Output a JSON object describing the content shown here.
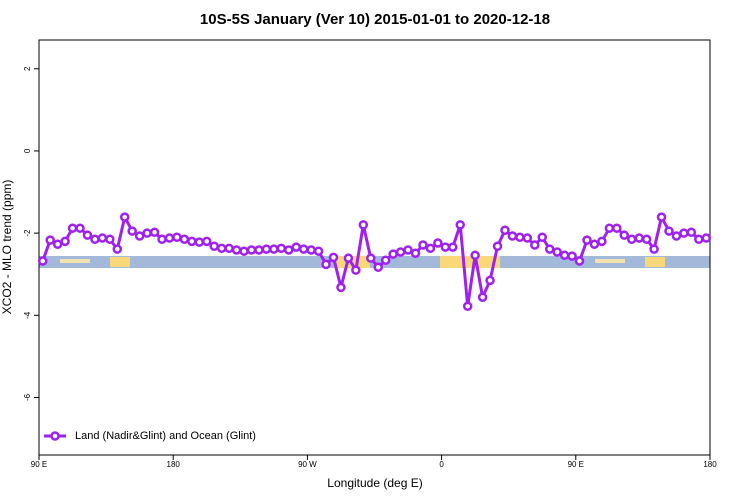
{
  "chart_data": {
    "type": "line",
    "title": "10S-5S January (Ver 10)   2015-01-01 to 2020-12-18",
    "x_label": "Longitude (deg E)",
    "y_label": "XCO2 - MLO trend (ppm)",
    "x": [
      92.5,
      97.5,
      102.5,
      107.5,
      112.5,
      117.5,
      122.5,
      127.5,
      132.5,
      137.5,
      142.5,
      147.5,
      152.5,
      157.5,
      162.5,
      167.5,
      172.5,
      177.5,
      182.5,
      187.5,
      192.5,
      197.5,
      202.5,
      207.5,
      212.5,
      217.5,
      222.5,
      227.5,
      232.5,
      237.5,
      242.5,
      247.5,
      252.5,
      257.5,
      262.5,
      267.5,
      272.5,
      277.5,
      282.5,
      287.5,
      292.5,
      297.5,
      302.5,
      307.5,
      312.5,
      317.5,
      322.5,
      327.5,
      332.5,
      337.5,
      342.5,
      347.5,
      352.5,
      357.5,
      362.5,
      367.5,
      372.5,
      377.5,
      382.5,
      387.5,
      392.5,
      397.5,
      402.5,
      407.5,
      412.5,
      417.5,
      422.5,
      427.5,
      432.5,
      437.5,
      442.5,
      447.5,
      452.5,
      457.5,
      462.5,
      467.5,
      472.5,
      477.5,
      482.5,
      487.5,
      492.5,
      497.5,
      502.5,
      507.5,
      512.5,
      517.5,
      522.5,
      527.5,
      532.5,
      537.5
    ],
    "series": [
      {
        "name": "Land (Nadir&Glint) and Ocean (Glint)",
        "color": "#a020f0",
        "values": [
          -2.68,
          -2.17,
          -2.27,
          -2.2,
          -1.88,
          -1.88,
          -2.05,
          -2.15,
          -2.12,
          -2.15,
          -2.39,
          -1.61,
          -1.95,
          -2.07,
          -2.0,
          -1.98,
          -2.15,
          -2.12,
          -2.1,
          -2.15,
          -2.2,
          -2.22,
          -2.2,
          -2.32,
          -2.37,
          -2.37,
          -2.41,
          -2.44,
          -2.41,
          -2.41,
          -2.39,
          -2.39,
          -2.37,
          -2.41,
          -2.34,
          -2.39,
          -2.41,
          -2.44,
          -2.76,
          -2.59,
          -3.32,
          -2.61,
          -2.9,
          -1.8,
          -2.61,
          -2.83,
          -2.66,
          -2.51,
          -2.46,
          -2.41,
          -2.49,
          -2.29,
          -2.37,
          -2.24,
          -2.34,
          -2.34,
          -1.8,
          -3.78,
          -2.54,
          -3.56,
          -3.15,
          -2.32,
          -1.93,
          -2.07,
          -2.1,
          -2.12,
          -2.29,
          -2.1,
          -2.39,
          -2.46,
          -2.54,
          -2.56,
          -2.68,
          -2.17,
          -2.27,
          -2.2,
          -1.88,
          -1.88,
          -2.05,
          -2.15,
          -2.12,
          -2.15,
          -2.39,
          -1.61,
          -1.95,
          -2.07,
          -2.0,
          -1.98,
          -2.15,
          -2.12
        ]
      }
    ],
    "xlim": [
      90,
      540
    ],
    "xticks": [
      {
        "value": 90,
        "label": "90 E"
      },
      180,
      {
        "value": 270,
        "label": "90 W"
      },
      {
        "value": 360,
        "label": "0"
      },
      {
        "value": 450,
        "label": "90 E"
      },
      {
        "value": 540,
        "label": "180"
      }
    ],
    "ylim": [
      -7.4,
      2.7
    ],
    "yticks": [
      2,
      0,
      -2,
      -4,
      -6
    ],
    "legend": "bottom-left"
  }
}
